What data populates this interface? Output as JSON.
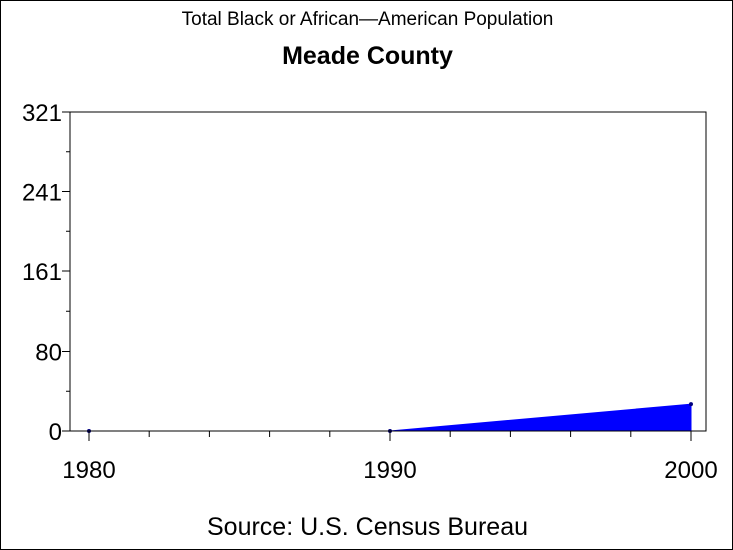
{
  "chart_data": {
    "type": "area",
    "title": "Total Black or African—American Population",
    "subtitle": "Meade County",
    "source": "Source: U.S. Census Bureau",
    "x": [
      1980,
      1990,
      2000
    ],
    "values": [
      0,
      0,
      27
    ],
    "xlim": [
      1980,
      2000
    ],
    "ylim": [
      0,
      321
    ],
    "yticks": [
      "0",
      "80",
      "161",
      "241",
      "321"
    ],
    "xticks": [
      "1980",
      "1990",
      "2000"
    ],
    "color": "#0000ff",
    "grid": false,
    "legend": "none"
  }
}
